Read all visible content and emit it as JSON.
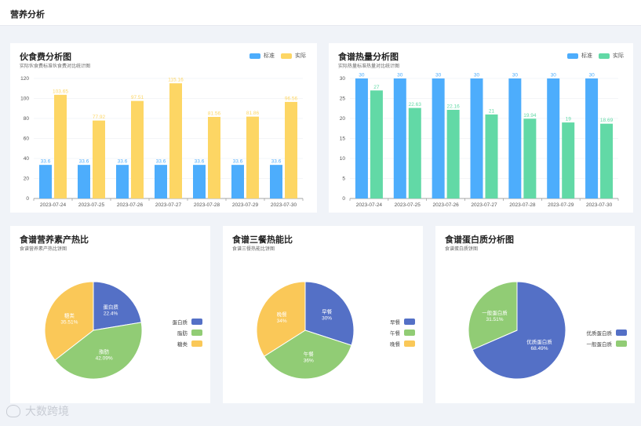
{
  "page": {
    "title": "营养分析"
  },
  "colors": {
    "blue": "#4dadfc",
    "yellow": "#fdd664",
    "green": "#62d9a6",
    "pie_blue": "#5470c6",
    "pie_green": "#91cc75",
    "pie_yellow": "#fac858"
  },
  "cost_card": {
    "title": "伙食费分析图",
    "subtitle": "实际伙食费标准伙食费对比统计图",
    "legend": [
      "标准",
      "实际"
    ]
  },
  "calorie_card": {
    "title": "食谱热量分析图",
    "subtitle": "实际热量标准热量对比统计图",
    "legend": [
      "标准",
      "实际"
    ]
  },
  "nutrient_card": {
    "title": "食谱营养素产热比",
    "subtitle": "食谱营养素产热比饼图"
  },
  "meal_card": {
    "title": "食谱三餐热能比",
    "subtitle": "食谱三餐热能比饼图"
  },
  "protein_card": {
    "title": "食谱蛋白质分析图",
    "subtitle": "食谱蛋白质饼图"
  },
  "watermark": "大数跨境",
  "chart_data": [
    {
      "type": "bar",
      "categories": [
        "2023-07-24",
        "2023-07-25",
        "2023-07-26",
        "2023-07-27",
        "2023-07-28",
        "2023-07-29",
        "2023-07-30"
      ],
      "series": [
        {
          "name": "标准",
          "values": [
            33.6,
            33.6,
            33.6,
            33.6,
            33.6,
            33.6,
            33.6
          ],
          "labels": [
            "33.6",
            "33.6",
            "33.6",
            "33.6",
            "33.6",
            "33.6",
            "33.6"
          ]
        },
        {
          "name": "实际",
          "values": [
            103.65,
            77.92,
            97.51,
            115.16,
            81.56,
            81.86,
            96.56
          ],
          "labels": [
            "103.65",
            "77.92",
            "97.51",
            "115.16",
            "81.56",
            "81.86",
            "96.56"
          ]
        }
      ],
      "ylim": [
        0,
        120
      ],
      "yticks": [
        0,
        20,
        40,
        60,
        80,
        100,
        120
      ]
    },
    {
      "type": "bar",
      "categories": [
        "2023-07-24",
        "2023-07-25",
        "2023-07-26",
        "2023-07-27",
        "2023-07-28",
        "2023-07-29",
        "2023-07-30"
      ],
      "series": [
        {
          "name": "标准",
          "values": [
            30,
            30,
            30,
            30,
            30,
            30,
            30
          ],
          "labels": [
            "30",
            "30",
            "30",
            "30",
            "30",
            "30",
            "30"
          ]
        },
        {
          "name": "实际",
          "values": [
            27,
            22.63,
            22.16,
            21,
            19.94,
            19,
            18.69
          ],
          "labels": [
            "27",
            "22.63",
            "22.16",
            "21",
            "19.94",
            "19",
            "18.69"
          ]
        }
      ],
      "ylim": [
        0,
        30
      ],
      "yticks": [
        0,
        5,
        10,
        15,
        20,
        25,
        30
      ]
    },
    {
      "type": "pie",
      "slices": [
        {
          "name": "蛋白质",
          "value": 22.4,
          "label": "22.4%"
        },
        {
          "name": "脂肪",
          "value": 42.09,
          "label": "42.09%"
        },
        {
          "name": "糖类",
          "value": 35.51,
          "label": "35.51%"
        }
      ]
    },
    {
      "type": "pie",
      "slices": [
        {
          "name": "早餐",
          "value": 30,
          "label": "30%"
        },
        {
          "name": "午餐",
          "value": 36,
          "label": "36%"
        },
        {
          "name": "晚餐",
          "value": 34,
          "label": "34%"
        }
      ]
    },
    {
      "type": "pie",
      "slices": [
        {
          "name": "优质蛋白质",
          "value": 68.49,
          "label": "68.49%"
        },
        {
          "name": "一般蛋白质",
          "value": 31.51,
          "label": "31.51%"
        }
      ]
    }
  ]
}
